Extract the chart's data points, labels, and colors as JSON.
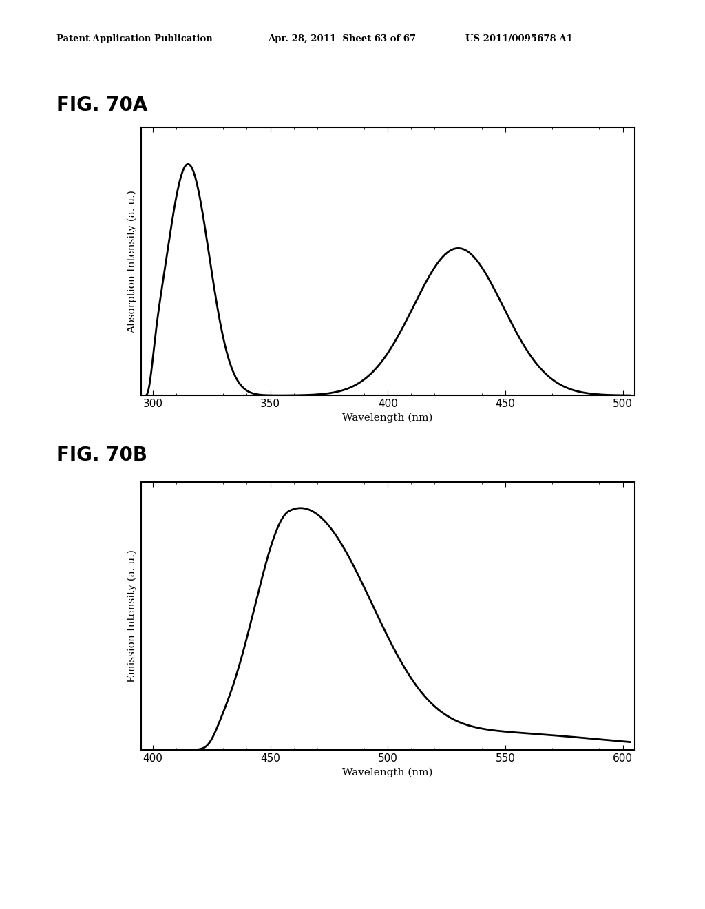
{
  "header_left": "Patent Application Publication",
  "header_mid": "Apr. 28, 2011  Sheet 63 of 67",
  "header_right": "US 2011/0095678 A1",
  "fig_label_A": "FIG. 70A",
  "fig_label_B": "FIG. 70B",
  "plot_A": {
    "xlabel": "Wavelength (nm)",
    "ylabel": "Absorption Intensity (a. u.)",
    "xlim": [
      295,
      505
    ],
    "xticks": [
      300,
      350,
      400,
      450,
      500
    ],
    "curve_color": "#000000",
    "line_width": 2.0
  },
  "plot_B": {
    "xlabel": "Wavelength (nm)",
    "ylabel": "Emission Intensity (a. u.)",
    "xlim": [
      395,
      605
    ],
    "xticks": [
      400,
      450,
      500,
      550,
      600
    ],
    "curve_color": "#000000",
    "line_width": 2.0
  },
  "background_color": "#ffffff",
  "text_color": "#000000",
  "header_fontsize": 9.5,
  "fig_label_fontsize": 20,
  "axis_label_fontsize": 11,
  "tick_label_fontsize": 11
}
